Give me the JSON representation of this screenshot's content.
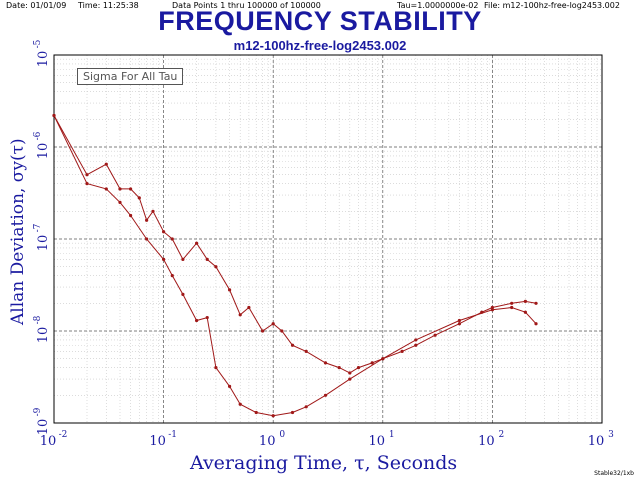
{
  "header": {
    "date": "Date: 01/01/09",
    "time": "Time: 11:25:38",
    "points": "Data Points 1 thru 100000 of 100000",
    "tau": "Tau=1.0000000e-02",
    "file": "File: m12-100hz-free-log2453.002"
  },
  "footer": "Stable32/1xb",
  "chart_data": {
    "type": "line",
    "title": "FREQUENCY STABILITY",
    "subtitle": "m12-100hz-free-log2453.002",
    "xlabel": "Averaging Time, τ, Seconds",
    "ylabel": "Allan Deviation, σy(τ)",
    "legend": "Sigma For All Tau",
    "legend_position": "top-left",
    "x_scale": "log",
    "y_scale": "log",
    "xlim": [
      0.01,
      1000
    ],
    "ylim": [
      1e-09,
      1e-05
    ],
    "grid": true,
    "x_ticks": [
      {
        "base": "10",
        "exp": "-2"
      },
      {
        "base": "10",
        "exp": "-1"
      },
      {
        "base": "10",
        "exp": "0"
      },
      {
        "base": "10",
        "exp": "1"
      },
      {
        "base": "10",
        "exp": "2"
      },
      {
        "base": "10",
        "exp": "3"
      }
    ],
    "y_ticks": [
      {
        "base": "10",
        "exp": "-9"
      },
      {
        "base": "10",
        "exp": "-8"
      },
      {
        "base": "10",
        "exp": "-7"
      },
      {
        "base": "10",
        "exp": "-6"
      },
      {
        "base": "10",
        "exp": "-5"
      }
    ],
    "color": "#a01818",
    "series": [
      {
        "x": [
          0.01,
          0.02,
          0.03,
          0.04,
          0.05,
          0.06,
          0.07,
          0.08,
          0.1,
          0.12,
          0.15,
          0.2,
          0.25,
          0.3,
          0.4,
          0.5,
          0.6,
          0.8,
          1.0,
          1.2,
          1.5,
          2,
          3,
          4,
          5,
          6,
          8,
          10,
          15,
          20,
          30,
          50,
          80,
          100,
          150,
          200,
          250
        ],
        "y": [
          2.2e-06,
          5e-07,
          6.5e-07,
          3.5e-07,
          3.5e-07,
          2.8e-07,
          1.6e-07,
          2e-07,
          1.2e-07,
          1e-07,
          6e-08,
          9e-08,
          6e-08,
          5e-08,
          2.8e-08,
          1.5e-08,
          1.8e-08,
          1e-08,
          1.2e-08,
          1e-08,
          7e-09,
          6e-09,
          4.5e-09,
          4e-09,
          3.5e-09,
          4e-09,
          4.5e-09,
          5e-09,
          6e-09,
          7e-09,
          9e-09,
          1.2e-08,
          1.6e-08,
          1.8e-08,
          2e-08,
          2.1e-08,
          2e-08
        ]
      },
      {
        "x": [
          0.01,
          0.02,
          0.03,
          0.04,
          0.05,
          0.07,
          0.1,
          0.12,
          0.15,
          0.2,
          0.25,
          0.3,
          0.4,
          0.5,
          0.7,
          1.0,
          1.5,
          2,
          3,
          5,
          10,
          20,
          50,
          100,
          150,
          200,
          250
        ],
        "y": [
          2.2e-06,
          4e-07,
          3.5e-07,
          2.5e-07,
          1.8e-07,
          1e-07,
          6e-08,
          4e-08,
          2.5e-08,
          1.3e-08,
          1.4e-08,
          4e-09,
          2.5e-09,
          1.6e-09,
          1.3e-09,
          1.2e-09,
          1.3e-09,
          1.5e-09,
          2e-09,
          3e-09,
          5e-09,
          8e-09,
          1.3e-08,
          1.7e-08,
          1.8e-08,
          1.6e-08,
          1.2e-08
        ]
      }
    ]
  }
}
